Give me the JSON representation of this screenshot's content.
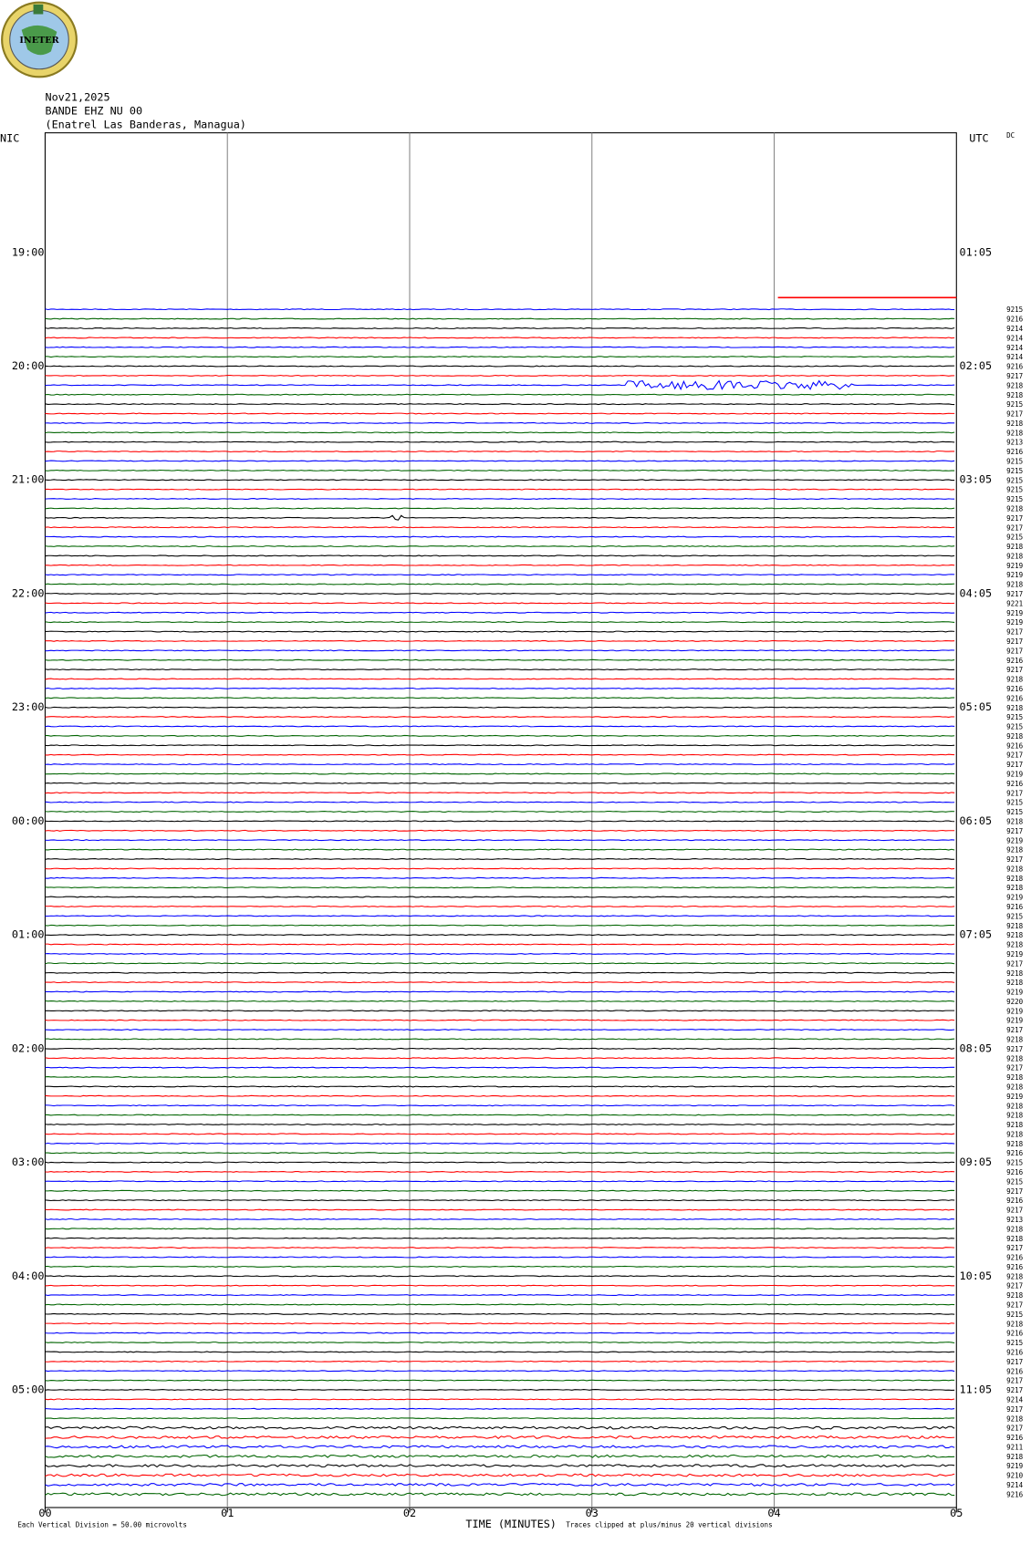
{
  "header": {
    "logo_text": "INETER",
    "date": "Nov21,2025",
    "station": "BANDE EHZ NU 00",
    "location": "(Enatrel Las Banderas, Managua)",
    "left_label": "NIC",
    "right_label": "UTC",
    "corner_label": "DC"
  },
  "left_times": [
    "19:00",
    "20:00",
    "21:00",
    "22:00",
    "23:00",
    "00:00",
    "01:00",
    "02:00",
    "03:00",
    "04:00",
    "05:00"
  ],
  "right_times": [
    "01:05",
    "02:05",
    "03:05",
    "04:05",
    "05:05",
    "06:05",
    "07:05",
    "08:05",
    "09:05",
    "10:05",
    "11:05"
  ],
  "x_ticks": [
    "00",
    "01",
    "02",
    "03",
    "04",
    "05"
  ],
  "trace_colors": [
    "#0000ff",
    "#006400",
    "#000000",
    "#ff0000"
  ],
  "trace_labels": [
    "9215",
    "9216",
    "9214",
    "9214",
    "9214",
    "9214",
    "9216",
    "9217",
    "9218",
    "9218",
    "9215",
    "9217",
    "9218",
    "9218",
    "9213",
    "9216",
    "9215",
    "9215",
    "9215",
    "9215",
    "9215",
    "9218",
    "9217",
    "9217",
    "9215",
    "9218",
    "9218",
    "9219",
    "9219",
    "9218",
    "9217",
    "9221",
    "9219",
    "9219",
    "9217",
    "9217",
    "9217",
    "9216",
    "9217",
    "9218",
    "9216",
    "9216",
    "9218",
    "9215",
    "9215",
    "9218",
    "9216",
    "9217",
    "9217",
    "9219",
    "9216",
    "9217",
    "9215",
    "9215",
    "9218",
    "9217",
    "9219",
    "9218",
    "9217",
    "9218",
    "9218",
    "9218",
    "9219",
    "9216",
    "9215",
    "9218",
    "9218",
    "9218",
    "9219",
    "9217",
    "9218",
    "9218",
    "9219",
    "9220",
    "9219",
    "9219",
    "9217",
    "9218",
    "9217",
    "9218",
    "9217",
    "9218",
    "9218",
    "9219",
    "9218",
    "9218",
    "9218",
    "9218",
    "9218",
    "9216",
    "9215",
    "9216",
    "9215",
    "9217",
    "9216",
    "9217",
    "9213",
    "9218",
    "9218",
    "9217",
    "9216",
    "9216",
    "9218",
    "9217",
    "9218",
    "9217",
    "9215",
    "9218",
    "9216",
    "9215",
    "9216",
    "9217",
    "9216",
    "9217",
    "9217",
    "9214",
    "9217",
    "9218",
    "9217",
    "9216",
    "9211",
    "9218",
    "9219",
    "9210",
    "9214",
    "9216"
  ],
  "footer": {
    "x_title": "TIME (MINUTES)",
    "division": "Each Vertical Division =   50.00 microvolts",
    "clip": "Traces clipped at plus/minus 20 vertical divisions"
  }
}
